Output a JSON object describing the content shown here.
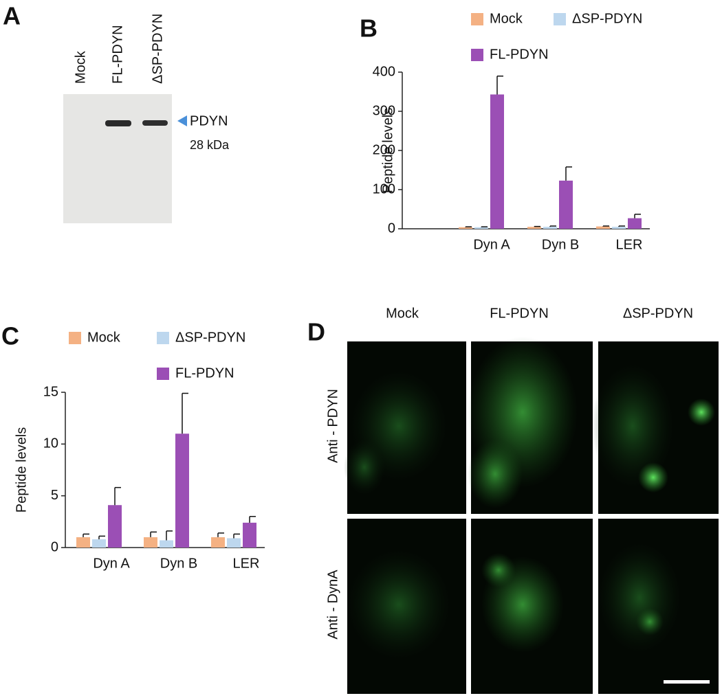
{
  "panel_labels": [
    "A",
    "B",
    "C",
    "D"
  ],
  "blot": {
    "lanes": [
      "Mock",
      "FL-PDYN",
      "ΔSP-PDYN"
    ],
    "band_label": "PDYN",
    "size_label": "28 kDa"
  },
  "chart_data": [
    {
      "type": "bar",
      "y_label": "Peptide levels",
      "categories": [
        "Dyn A",
        "Dyn B",
        "LER"
      ],
      "series": [
        {
          "name": "Mock",
          "color": "#f4b183",
          "values": [
            4,
            5,
            6
          ],
          "errors": [
            1,
            1,
            1
          ]
        },
        {
          "name": "ΔSP-PDYN",
          "color": "#bdd7ee",
          "values": [
            4,
            5,
            5
          ],
          "errors": [
            1,
            2,
            2
          ]
        },
        {
          "name": "FL-PDYN",
          "color": "#9b4fb5",
          "values": [
            343,
            123,
            27
          ],
          "errors": [
            47,
            35,
            10
          ]
        }
      ],
      "ylim": [
        0,
        400
      ],
      "yticks": [
        0,
        100,
        200,
        300,
        400
      ]
    },
    {
      "type": "bar",
      "y_label": "Peptide levels",
      "categories": [
        "Dyn A",
        "Dyn B",
        "LER"
      ],
      "series": [
        {
          "name": "Mock",
          "color": "#f4b183",
          "values": [
            1.0,
            1.0,
            1.0
          ],
          "errors": [
            0.3,
            0.5,
            0.4
          ]
        },
        {
          "name": "ΔSP-PDYN",
          "color": "#bdd7ee",
          "values": [
            0.8,
            0.7,
            0.9
          ],
          "errors": [
            0.3,
            0.9,
            0.4
          ]
        },
        {
          "name": "FL-PDYN",
          "color": "#9b4fb5",
          "values": [
            4.1,
            11.0,
            2.4
          ],
          "errors": [
            1.7,
            3.9,
            0.6
          ]
        }
      ],
      "ylim": [
        0,
        15
      ],
      "yticks": [
        0,
        5,
        10,
        15
      ]
    }
  ],
  "microscopy": {
    "columns": [
      "Mock",
      "FL-PDYN",
      "ΔSP-PDYN"
    ],
    "rows": [
      "Anti - PDYN",
      "Anti - DynA"
    ]
  }
}
